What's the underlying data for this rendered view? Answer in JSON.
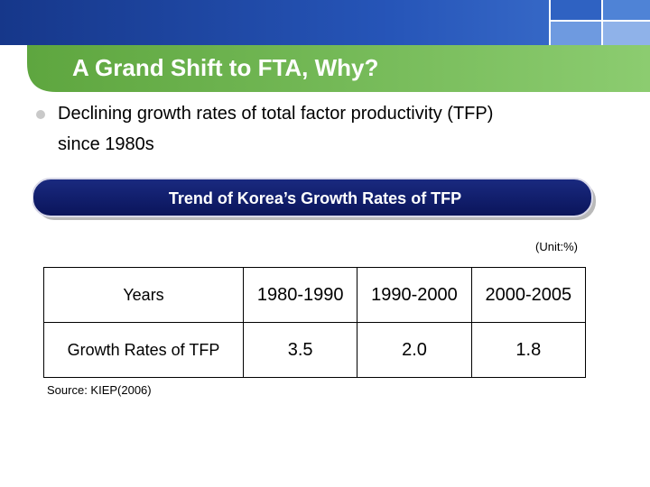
{
  "slide": {
    "title": "A Grand Shift to FTA, Why?",
    "bullet": {
      "line1": "Declining growth rates of total factor productivity (TFP)",
      "line2": "since 1980s"
    },
    "banner": "Trend of Korea’s Growth Rates of TFP",
    "unit": "(Unit:%)",
    "source": "Source: KIEP(2006)"
  },
  "table": {
    "header": {
      "label": "Years",
      "periods": [
        "1980-1990",
        "1990-2000",
        "2000-2005"
      ]
    },
    "row": {
      "label": "Growth Rates of TFP",
      "values": [
        "3.5",
        "2.0",
        "1.8"
      ]
    }
  },
  "colors": {
    "top_bar": "#1f4ba8",
    "green_band": "#6ab04c",
    "banner": "#0d1a66",
    "bullet": "#c9c9c9"
  }
}
